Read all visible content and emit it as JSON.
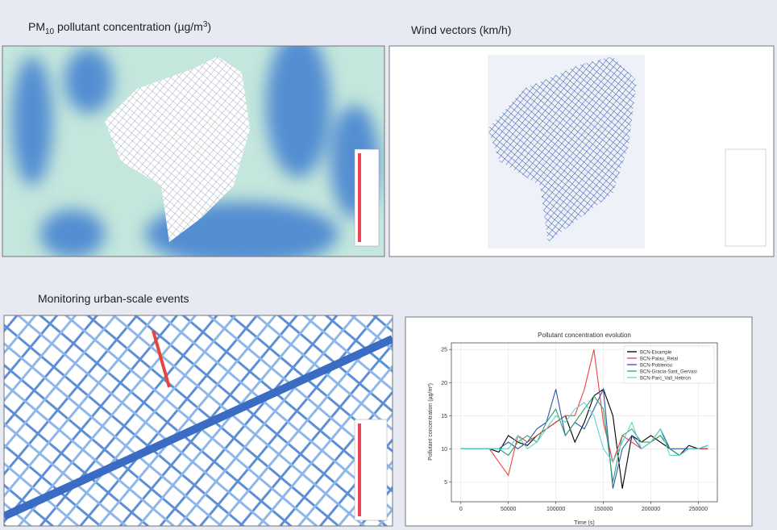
{
  "panels": {
    "pm10": {
      "title_parts": [
        "PM",
        "10",
        " pollutant concentration (µg/m",
        "3",
        ")"
      ]
    },
    "wind": {
      "title": "Wind vectors (km/h)"
    },
    "events": {
      "title": "Monitoring urban-scale events"
    }
  },
  "chart_data": {
    "type": "line",
    "title": "Pollutant concentration evolution",
    "x_label": "Time (s)",
    "y_label": "Pollutant concentration (µg/m³)",
    "x": [
      0,
      10000,
      20000,
      30000,
      40000,
      50000,
      60000,
      70000,
      80000,
      90000,
      100000,
      110000,
      120000,
      130000,
      140000,
      150000,
      160000,
      170000,
      180000,
      190000,
      200000,
      210000,
      220000,
      230000,
      240000,
      250000,
      260000
    ],
    "series": [
      {
        "name": "BCN-Eixample",
        "color": "#000000",
        "values": [
          10,
          10,
          10,
          10,
          9.5,
          12,
          11,
          10.5,
          12,
          13,
          14,
          15,
          11,
          14,
          18,
          19,
          15,
          4,
          12,
          11,
          12,
          11,
          10,
          9,
          10.5,
          10,
          10
        ]
      },
      {
        "name": "BCN-Palau_Reial",
        "color": "#e8433f",
        "values": [
          10,
          10,
          10,
          10,
          8,
          6,
          12,
          11,
          12,
          13,
          14,
          15,
          15,
          19,
          25,
          14,
          8,
          12,
          11,
          10,
          11,
          12,
          10,
          9,
          10,
          10,
          10
        ]
      },
      {
        "name": "BCN-Poblenou",
        "color": "#2c57a8",
        "values": [
          10,
          10,
          10,
          10,
          10,
          11,
          10,
          11,
          13,
          14,
          19,
          12,
          14,
          13,
          16,
          19,
          4,
          10,
          12,
          10,
          11,
          13,
          10,
          10,
          10,
          10,
          10.5
        ]
      },
      {
        "name": "BCN-Gracia-Sant_Gervasi",
        "color": "#2ea36a",
        "values": [
          10,
          10,
          10,
          10,
          10,
          9,
          11,
          12,
          11,
          14,
          16,
          12,
          14,
          16,
          18,
          16,
          5,
          12,
          13,
          11,
          11,
          12,
          10,
          9,
          10,
          10,
          10.5
        ]
      },
      {
        "name": "BCN-Parc_Vall_Hebron",
        "color": "#5fd3d0",
        "values": [
          10,
          10,
          10,
          10,
          10,
          10,
          12,
          10,
          11,
          13,
          15,
          14,
          16,
          17,
          15,
          10,
          8,
          11,
          14,
          10,
          11,
          13,
          9,
          9,
          10,
          10,
          10.5
        ]
      }
    ],
    "xlim": [
      -10000,
      270000
    ],
    "xticks": [
      0,
      50000,
      100000,
      150000,
      200000,
      250000
    ],
    "ylim": [
      2,
      26
    ],
    "yticks": [
      5,
      10,
      15,
      20,
      25
    ],
    "grid": true,
    "legend": "upper-right"
  }
}
